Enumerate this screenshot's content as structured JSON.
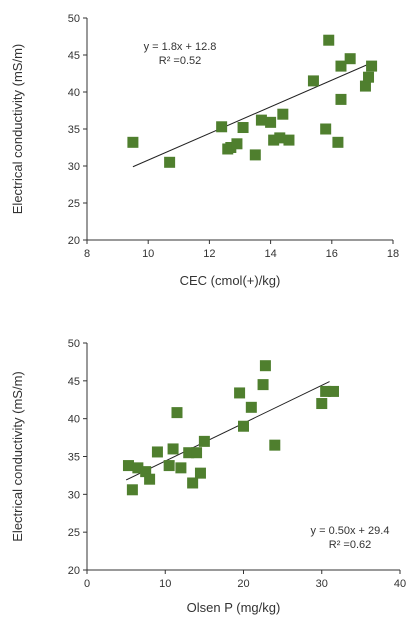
{
  "chart_data": [
    {
      "type": "scatter",
      "xlabel": "CEC (cmol(+)/kg)",
      "ylabel": "Electrical conductivity (mS/m)",
      "xlim": [
        8,
        18
      ],
      "ylim": [
        20,
        50
      ],
      "xticks": [
        "8",
        "10",
        "12",
        "14",
        "16",
        "18"
      ],
      "yticks": [
        "20",
        "25",
        "30",
        "35",
        "40",
        "45",
        "50"
      ],
      "marker_color": "#4f7f2e",
      "equation": "y = 1.8x + 12.8",
      "r_squared": "R² =0.52",
      "trendline": {
        "slope": 1.8,
        "intercept": 12.8,
        "x_range": [
          9.5,
          17.4
        ]
      },
      "points": [
        {
          "x": 9.5,
          "y": 33.2
        },
        {
          "x": 10.7,
          "y": 30.5
        },
        {
          "x": 12.4,
          "y": 35.3
        },
        {
          "x": 12.6,
          "y": 32.3
        },
        {
          "x": 12.7,
          "y": 32.5
        },
        {
          "x": 12.9,
          "y": 33.0
        },
        {
          "x": 13.1,
          "y": 35.2
        },
        {
          "x": 13.5,
          "y": 31.5
        },
        {
          "x": 13.7,
          "y": 36.2
        },
        {
          "x": 14.0,
          "y": 35.9
        },
        {
          "x": 14.1,
          "y": 33.5
        },
        {
          "x": 14.3,
          "y": 33.8
        },
        {
          "x": 14.4,
          "y": 37.0
        },
        {
          "x": 14.6,
          "y": 33.5
        },
        {
          "x": 15.4,
          "y": 41.5
        },
        {
          "x": 15.8,
          "y": 35.0
        },
        {
          "x": 15.9,
          "y": 47.0
        },
        {
          "x": 16.2,
          "y": 33.2
        },
        {
          "x": 16.3,
          "y": 43.5
        },
        {
          "x": 16.3,
          "y": 39.0
        },
        {
          "x": 16.6,
          "y": 44.5
        },
        {
          "x": 17.1,
          "y": 40.8
        },
        {
          "x": 17.2,
          "y": 42.0
        },
        {
          "x": 17.3,
          "y": 43.5
        }
      ]
    },
    {
      "type": "scatter",
      "xlabel": "Olsen P (mg/kg)",
      "ylabel": "Electrical conductivity (mS/m)",
      "xlim": [
        0,
        40
      ],
      "ylim": [
        20,
        50
      ],
      "xticks": [
        "0",
        "10",
        "20",
        "30",
        "40"
      ],
      "yticks": [
        "20",
        "25",
        "30",
        "35",
        "40",
        "45",
        "50"
      ],
      "marker_color": "#4f7f2e",
      "equation": "y = 0.50x + 29.4",
      "r_squared": "R² =0.62",
      "trendline": {
        "slope": 0.5,
        "intercept": 29.4,
        "x_range": [
          5,
          31
        ]
      },
      "points": [
        {
          "x": 5.3,
          "y": 33.8
        },
        {
          "x": 5.8,
          "y": 30.6
        },
        {
          "x": 6.5,
          "y": 33.5
        },
        {
          "x": 7.5,
          "y": 33.0
        },
        {
          "x": 8.0,
          "y": 32.0
        },
        {
          "x": 9.0,
          "y": 35.6
        },
        {
          "x": 10.5,
          "y": 33.8
        },
        {
          "x": 11.0,
          "y": 36.0
        },
        {
          "x": 11.5,
          "y": 40.8
        },
        {
          "x": 12.0,
          "y": 33.5
        },
        {
          "x": 13.0,
          "y": 35.5
        },
        {
          "x": 13.5,
          "y": 31.5
        },
        {
          "x": 14.0,
          "y": 35.5
        },
        {
          "x": 14.5,
          "y": 32.8
        },
        {
          "x": 15.0,
          "y": 37.0
        },
        {
          "x": 19.5,
          "y": 43.4
        },
        {
          "x": 20.0,
          "y": 39.0
        },
        {
          "x": 21.0,
          "y": 41.5
        },
        {
          "x": 22.5,
          "y": 44.5
        },
        {
          "x": 22.8,
          "y": 47.0
        },
        {
          "x": 24.0,
          "y": 36.5
        },
        {
          "x": 30.0,
          "y": 42.0
        },
        {
          "x": 30.5,
          "y": 43.6
        },
        {
          "x": 31.5,
          "y": 43.6
        }
      ]
    }
  ]
}
